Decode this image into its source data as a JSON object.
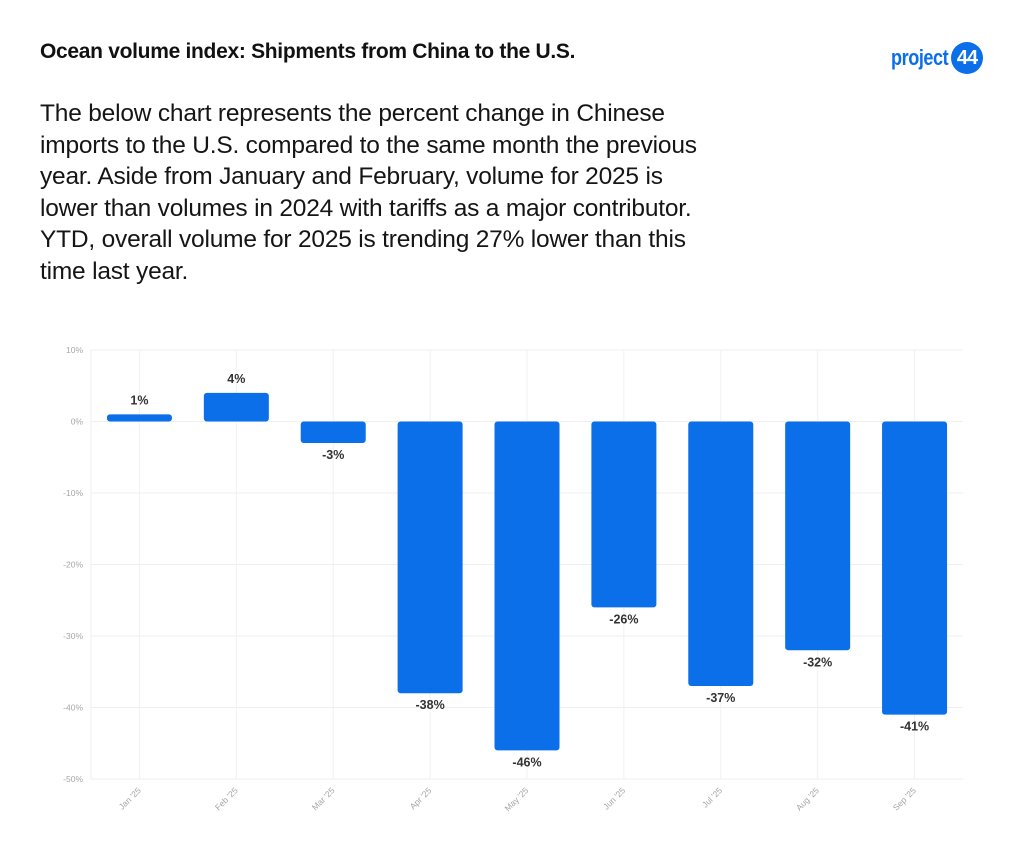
{
  "header": {
    "title": "Ocean volume index: Shipments from China to the U.S.",
    "logo_text": "project",
    "logo_badge": "44",
    "brand_color": "#0a6fe8"
  },
  "description_lines": [
    "The below chart represents the percent change in Chinese",
    "imports to the U.S. compared to the same month the previous",
    "year. Aside from January and February, volume for 2025 is",
    "lower than volumes in 2024 with tariffs as a major contributor.",
    "YTD, overall volume for 2025 is trending 27% lower than this",
    "time last year."
  ],
  "chart_data": {
    "type": "bar",
    "title": "",
    "xlabel": "",
    "ylabel": "",
    "categories": [
      "Jan '25",
      "Feb '25",
      "Mar '25",
      "Apr '25",
      "May '25",
      "Jun '25",
      "Jul '25",
      "Aug '25",
      "Sep '25"
    ],
    "values": [
      1,
      4,
      -3,
      -38,
      -46,
      -26,
      -37,
      -32,
      -41
    ],
    "data_labels": [
      "1%",
      "4%",
      "-3%",
      "-38%",
      "-46%",
      "-26%",
      "-37%",
      "-32%",
      "-41%"
    ],
    "ylim": [
      -50,
      10
    ],
    "yticks": [
      10,
      0,
      -10,
      -20,
      -30,
      -40,
      -50
    ],
    "ytick_labels": [
      "10%",
      "0%",
      "-10%",
      "-20%",
      "-30%",
      "-40%",
      "-50%"
    ],
    "grid": true,
    "legend": "none",
    "bar_color": "#0a6fe8",
    "x_tick_rotation_deg": -45
  }
}
